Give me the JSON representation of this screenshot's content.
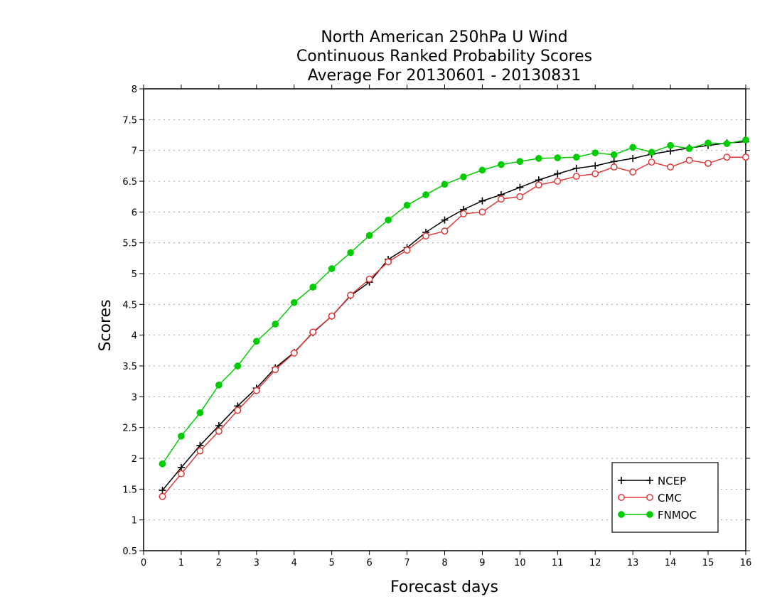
{
  "chart_data": {
    "type": "line",
    "title": [
      "North American 250hPa U Wind",
      "Continuous Ranked Probability Scores",
      "Average For 20130601 - 20130831"
    ],
    "xlabel": "Forecast days",
    "ylabel": "Scores",
    "xlim": [
      0,
      16
    ],
    "ylim": [
      0.5,
      8
    ],
    "xticks": [
      "0",
      "1",
      "2",
      "3",
      "4",
      "5",
      "6",
      "7",
      "8",
      "9",
      "10",
      "11",
      "12",
      "13",
      "14",
      "15",
      "16"
    ],
    "yticks": [
      "0.5",
      "1",
      "1.5",
      "2",
      "2.5",
      "3",
      "3.5",
      "4",
      "4.5",
      "5",
      "5.5",
      "6",
      "6.5",
      "7",
      "7.5",
      "8"
    ],
    "grid": "horizontal dotted",
    "legend_position": "bottom-right",
    "x": [
      0.5,
      1,
      1.5,
      2,
      2.5,
      3,
      3.5,
      4,
      4.5,
      5,
      5.5,
      6,
      6.5,
      7,
      7.5,
      8,
      8.5,
      9,
      9.5,
      10,
      10.5,
      11,
      11.5,
      12,
      12.5,
      13,
      13.5,
      14,
      14.5,
      15,
      15.5,
      16
    ],
    "series": [
      {
        "name": "NCEP",
        "color": "#000000",
        "marker": "plus",
        "values": [
          1.48,
          1.85,
          2.21,
          2.53,
          2.85,
          3.14,
          3.47,
          3.72,
          4.04,
          4.31,
          4.64,
          4.86,
          5.23,
          5.42,
          5.67,
          5.87,
          6.04,
          6.18,
          6.28,
          6.4,
          6.52,
          6.62,
          6.71,
          6.75,
          6.82,
          6.87,
          6.94,
          6.99,
          7.04,
          7.08,
          7.12,
          7.14
        ]
      },
      {
        "name": "CMC",
        "color": "#e03838",
        "marker": "open-circle",
        "values": [
          1.38,
          1.75,
          2.12,
          2.44,
          2.78,
          3.1,
          3.44,
          3.71,
          4.05,
          4.31,
          4.65,
          4.91,
          5.19,
          5.38,
          5.61,
          5.69,
          5.97,
          6.0,
          6.21,
          6.25,
          6.44,
          6.5,
          6.58,
          6.62,
          6.73,
          6.65,
          6.81,
          6.73,
          6.84,
          6.79,
          6.89,
          6.89
        ]
      },
      {
        "name": "FNMOC",
        "color": "#00cc00",
        "marker": "filled-circle",
        "values": [
          1.91,
          2.36,
          2.74,
          3.19,
          3.5,
          3.9,
          4.18,
          4.53,
          4.78,
          5.08,
          5.34,
          5.62,
          5.87,
          6.11,
          6.28,
          6.45,
          6.57,
          6.68,
          6.77,
          6.82,
          6.87,
          6.88,
          6.89,
          6.96,
          6.93,
          7.05,
          6.97,
          7.08,
          7.03,
          7.12,
          7.11,
          7.17
        ]
      }
    ]
  }
}
